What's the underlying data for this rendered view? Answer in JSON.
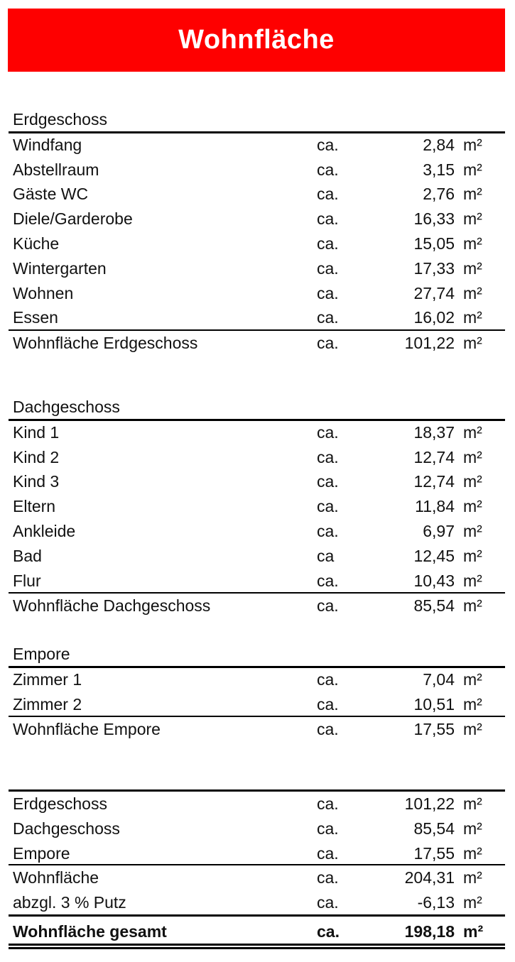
{
  "title": "Wohnfläche",
  "unit": "m²",
  "sections": [
    {
      "heading": "Erdgeschoss",
      "rows": [
        {
          "label": "Windfang",
          "ca": "ca.",
          "value": "2,84"
        },
        {
          "label": "Abstellraum",
          "ca": "ca.",
          "value": "3,15"
        },
        {
          "label": "Gäste WC",
          "ca": "ca.",
          "value": "2,76"
        },
        {
          "label": "Diele/Garderobe",
          "ca": "ca.",
          "value": "16,33"
        },
        {
          "label": "Küche",
          "ca": "ca.",
          "value": "15,05"
        },
        {
          "label": "Wintergarten",
          "ca": "ca.",
          "value": "17,33"
        },
        {
          "label": "Wohnen",
          "ca": "ca.",
          "value": "27,74"
        },
        {
          "label": "Essen",
          "ca": "ca.",
          "value": "16,02"
        }
      ],
      "total": {
        "label": "Wohnfläche Erdgeschoss",
        "ca": "ca.",
        "value": "101,22"
      }
    },
    {
      "heading": "Dachgeschoss",
      "rows": [
        {
          "label": "Kind 1",
          "ca": "ca.",
          "value": "18,37"
        },
        {
          "label": "Kind 2",
          "ca": "ca.",
          "value": "12,74"
        },
        {
          "label": "Kind 3",
          "ca": "ca.",
          "value": "12,74"
        },
        {
          "label": "Eltern",
          "ca": "ca.",
          "value": "11,84"
        },
        {
          "label": "Ankleide",
          "ca": "ca.",
          "value": "6,97"
        },
        {
          "label": "Bad",
          "ca": "ca",
          "value": "12,45"
        },
        {
          "label": "Flur",
          "ca": "ca.",
          "value": "10,43"
        }
      ],
      "total": {
        "label": "Wohnfläche Dachgeschoss",
        "ca": "ca.",
        "value": "85,54"
      }
    },
    {
      "heading": "Empore",
      "rows": [
        {
          "label": "Zimmer 1",
          "ca": "ca.",
          "value": "7,04"
        },
        {
          "label": "Zimmer 2",
          "ca": "ca.",
          "value": "10,51"
        }
      ],
      "total": {
        "label": "Wohnfläche Empore",
        "ca": "ca.",
        "value": "17,55"
      }
    }
  ],
  "summary": {
    "floors": [
      {
        "label": "Erdgeschoss",
        "ca": "ca.",
        "value": "101,22"
      },
      {
        "label": "Dachgeschoss",
        "ca": "ca.",
        "value": "85,54"
      },
      {
        "label": "Empore",
        "ca": "ca.",
        "value": "17,55"
      }
    ],
    "subtotal": [
      {
        "label": "Wohnfläche",
        "ca": "ca.",
        "value": "204,31"
      },
      {
        "label": "abzgl. 3 % Putz",
        "ca": "ca.",
        "value": "-6,13"
      }
    ],
    "grand_total": {
      "label": "Wohnfläche gesamt",
      "ca": "ca.",
      "value": "198,18"
    }
  }
}
